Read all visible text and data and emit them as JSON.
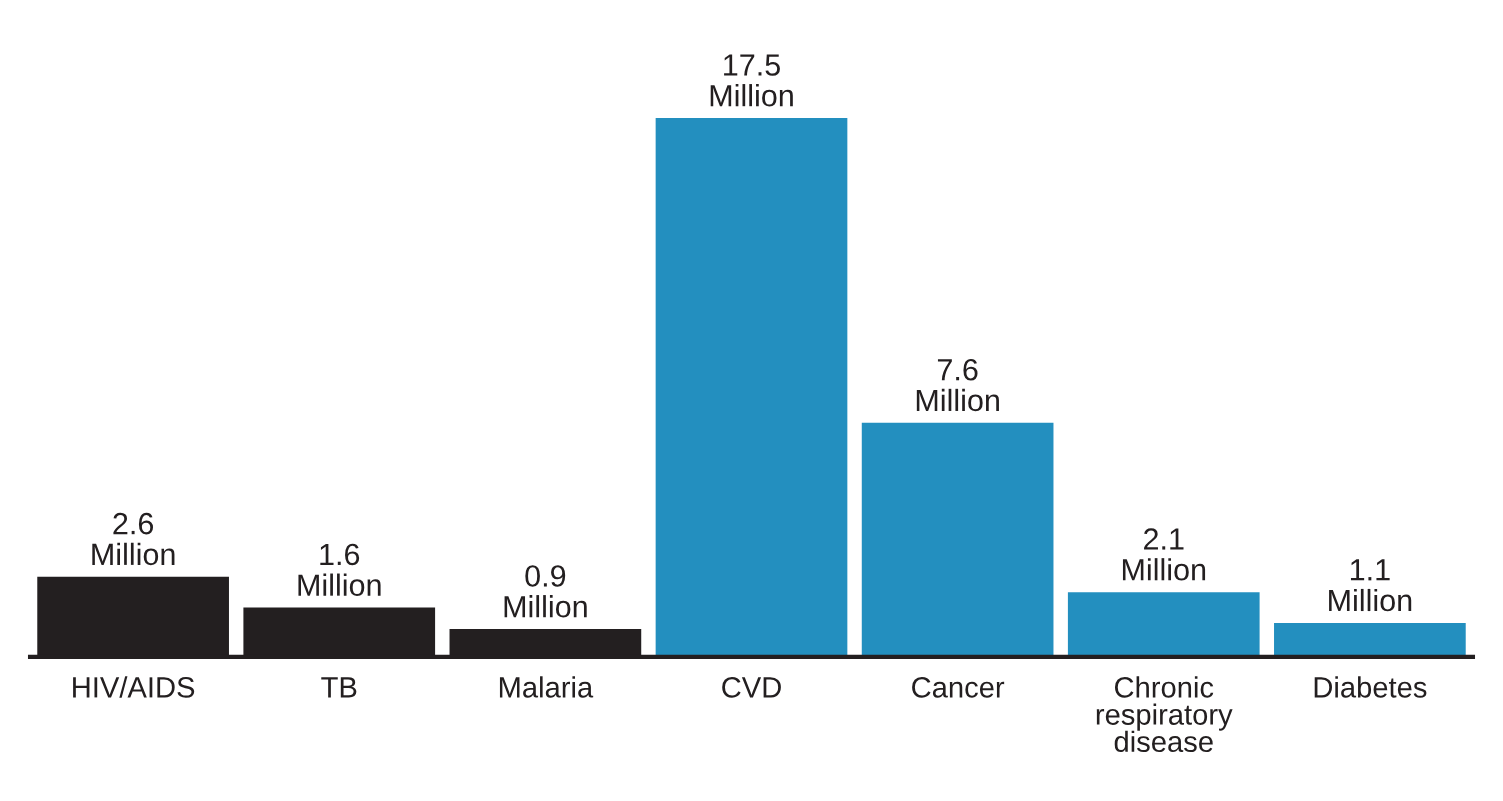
{
  "chart_data": {
    "type": "bar",
    "categories": [
      "HIV/AIDS",
      "TB",
      "Malaria",
      "CVD",
      "Cancer",
      "Chronic\nrespiratory\ndisease",
      "Diabetes"
    ],
    "values": [
      2.6,
      1.6,
      0.9,
      17.5,
      7.6,
      2.1,
      1.1
    ],
    "colors": [
      "#231f20",
      "#231f20",
      "#231f20",
      "#238fbf",
      "#238fbf",
      "#238fbf",
      "#238fbf"
    ],
    "value_labels": [
      "2.6\nMillion",
      "1.6\nMillion",
      "0.9\nMillion",
      "17.5\nMillion",
      "7.6\nMillion",
      "2.1\nMillion",
      "1.1\nMillion"
    ],
    "grid": false,
    "legend": false
  }
}
